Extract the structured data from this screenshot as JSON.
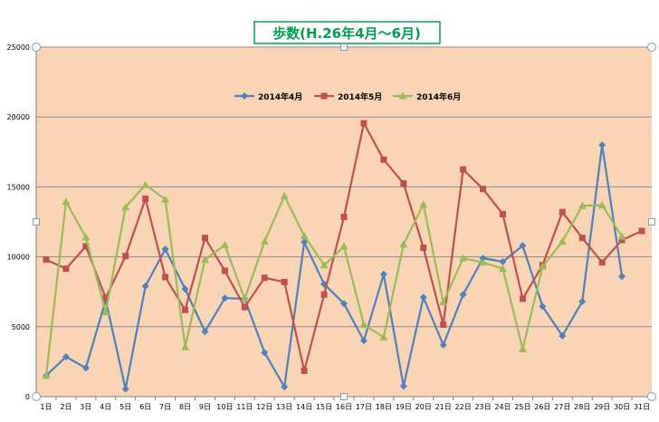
{
  "chart_data": {
    "type": "line",
    "title": "歩数(H.26年4月～6月)",
    "xlabel": "",
    "ylabel": "",
    "ylim": [
      0,
      25000
    ],
    "yticks": [
      "0",
      "5000",
      "10000",
      "15000",
      "20000",
      "25000"
    ],
    "grid": true,
    "legend_position": "top-center",
    "categories": [
      "1日",
      "2日",
      "3日",
      "4日",
      "5日",
      "6日",
      "7日",
      "8日",
      "9日",
      "10日",
      "11日",
      "12日",
      "13日",
      "14日",
      "15日",
      "16日",
      "17日",
      "18日",
      "19日",
      "20日",
      "21日",
      "22日",
      "23日",
      "24日",
      "25日",
      "26日",
      "27日",
      "28日",
      "29日",
      "30日",
      "31日"
    ],
    "series": [
      {
        "name": "2014年4月",
        "color": "#4F81BD",
        "marker": "diamond",
        "values": [
          1500,
          2850,
          2050,
          6900,
          550,
          7900,
          10550,
          7700,
          4650,
          7050,
          7000,
          3150,
          700,
          11050,
          8050,
          6650,
          4000,
          8750,
          750,
          7100,
          3700,
          7300,
          9900,
          9650,
          10800,
          6450,
          4350,
          6800,
          18000,
          8600,
          null
        ]
      },
      {
        "name": "2014年5月",
        "color": "#C0504D",
        "marker": "square",
        "values": [
          9800,
          9150,
          10750,
          7050,
          10050,
          14150,
          8550,
          6200,
          11350,
          9000,
          6400,
          8500,
          8200,
          1850,
          7300,
          12850,
          19550,
          16950,
          15250,
          10650,
          5150,
          16250,
          14850,
          13050,
          7000,
          9400,
          13200,
          11350,
          9600,
          11200,
          11850
        ]
      },
      {
        "name": "2014年6月",
        "color": "#9BBB59",
        "marker": "triangle",
        "values": [
          1500,
          13950,
          11400,
          6050,
          13550,
          15150,
          14100,
          3550,
          9800,
          10850,
          7000,
          11100,
          14350,
          11500,
          9400,
          10750,
          5150,
          4250,
          10900,
          13750,
          6750,
          9900,
          9600,
          9150,
          3400,
          9300,
          11100,
          13650,
          13700,
          11450,
          null
        ]
      }
    ]
  }
}
